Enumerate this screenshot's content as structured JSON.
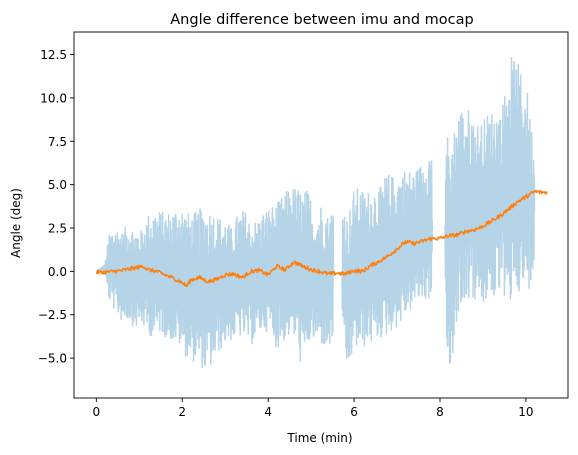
{
  "chart_data": {
    "type": "line",
    "title": "Angle difference between imu and mocap",
    "xlabel": "Time (min)",
    "ylabel": "Angle (deg)",
    "xlim": [
      -0.52,
      10.98
    ],
    "ylim": [
      -7.3,
      13.8
    ],
    "xticks": [
      {
        "value": 0,
        "label": "0"
      },
      {
        "value": 2,
        "label": "2"
      },
      {
        "value": 4,
        "label": "4"
      },
      {
        "value": 6,
        "label": "6"
      },
      {
        "value": 8,
        "label": "8"
      },
      {
        "value": 10,
        "label": "10"
      }
    ],
    "yticks": [
      {
        "value": -5.0,
        "label": "−5.0"
      },
      {
        "value": -2.5,
        "label": "−2.5"
      },
      {
        "value": 0.0,
        "label": "0.0"
      },
      {
        "value": 2.5,
        "label": "2.5"
      },
      {
        "value": 5.0,
        "label": "5.0"
      },
      {
        "value": 7.5,
        "label": "7.5"
      },
      {
        "value": 10.0,
        "label": "10.0"
      },
      {
        "value": 12.5,
        "label": "12.5"
      }
    ],
    "grid": false,
    "legend": "none",
    "series": [
      {
        "color": "#b6d4e7",
        "segments": [
          {
            "x": [
              0.0,
              0.2,
              0.3,
              0.45,
              0.6,
              0.75,
              0.9,
              1.05,
              1.2,
              1.35,
              1.5,
              1.65,
              1.8,
              1.95,
              2.1,
              2.25,
              2.4,
              2.55,
              2.7,
              2.85,
              3.0,
              3.15,
              3.3,
              3.45,
              3.6,
              3.75,
              3.9,
              4.05,
              4.2,
              4.35,
              4.5,
              4.65,
              4.8,
              4.95,
              5.1,
              5.25,
              5.4,
              5.52
            ],
            "low": [
              0.0,
              -0.2,
              -1.7,
              -2.4,
              -2.9,
              -2.8,
              -3.3,
              -3.1,
              -3.6,
              -3.9,
              -3.5,
              -3.9,
              -4.1,
              -4.4,
              -5.0,
              -5.2,
              -5.4,
              -5.9,
              -5.5,
              -4.7,
              -4.2,
              -4.0,
              -3.8,
              -3.9,
              -4.3,
              -3.7,
              -3.4,
              -3.6,
              -4.5,
              -4.1,
              -3.8,
              -4.1,
              -5.9,
              -4.2,
              -4.1,
              -4.3,
              -4.6,
              -4.4
            ],
            "high": [
              0.0,
              0.4,
              2.3,
              2.6,
              2.3,
              2.8,
              2.5,
              2.4,
              3.3,
              3.6,
              3.5,
              3.4,
              3.6,
              4.0,
              3.4,
              3.3,
              3.6,
              3.7,
              3.6,
              3.2,
              3.1,
              2.5,
              3.4,
              3.6,
              2.9,
              3.0,
              3.5,
              3.8,
              3.9,
              4.4,
              4.9,
              4.9,
              4.7,
              4.7,
              3.1,
              4.1,
              3.2,
              3.9
            ]
          },
          {
            "x": [
              5.72,
              5.85,
              6.0,
              6.15,
              6.3,
              6.45,
              6.6,
              6.75,
              6.9,
              7.05,
              7.2,
              7.35,
              7.5,
              7.65,
              7.82
            ],
            "low": [
              -5.2,
              -5.9,
              -4.5,
              -4.6,
              -4.3,
              -4.2,
              -3.9,
              -3.8,
              -3.4,
              -3.2,
              -2.6,
              -2.2,
              -1.8,
              -1.8,
              -1.5
            ],
            "high": [
              4.6,
              3.1,
              4.8,
              4.8,
              4.6,
              5.0,
              4.8,
              5.7,
              5.5,
              5.7,
              6.0,
              5.8,
              6.0,
              6.8,
              7.3
            ]
          },
          {
            "x": [
              8.12,
              8.25,
              8.4,
              8.55,
              8.7,
              8.85,
              9.0,
              9.15,
              9.3,
              9.45,
              9.6,
              9.75,
              9.9,
              10.05,
              10.2
            ],
            "low": [
              -3.1,
              -6.4,
              -2.6,
              -1.6,
              -1.7,
              -1.8,
              -2.2,
              -1.4,
              -1.8,
              -0.9,
              -3.1,
              -0.3,
              -1.8,
              -1.2,
              0.1
            ],
            "high": [
              8.4,
              7.3,
              9.4,
              9.5,
              9.4,
              8.6,
              8.7,
              9.3,
              9.3,
              9.5,
              12.4,
              12.4,
              11.4,
              10.3,
              6.8
            ]
          }
        ]
      },
      {
        "color": "#ff7f0e",
        "x": [
          0.0,
          0.2,
          0.4,
          0.6,
          0.8,
          1.0,
          1.1,
          1.2,
          1.4,
          1.6,
          1.8,
          2.0,
          2.1,
          2.2,
          2.4,
          2.6,
          2.8,
          3.0,
          3.2,
          3.4,
          3.6,
          3.8,
          4.0,
          4.2,
          4.4,
          4.6,
          4.8,
          5.0,
          5.2,
          5.4,
          5.6,
          5.8,
          6.0,
          6.2,
          6.4,
          6.6,
          6.8,
          7.0,
          7.2,
          7.4,
          7.6,
          7.8,
          8.0,
          8.2,
          8.4,
          8.6,
          8.8,
          9.0,
          9.2,
          9.4,
          9.6,
          9.8,
          10.0,
          10.2,
          10.4,
          10.5
        ],
        "y": [
          -0.05,
          -0.05,
          0.0,
          0.05,
          0.15,
          0.25,
          0.3,
          0.1,
          0.0,
          -0.2,
          -0.4,
          -0.65,
          -0.85,
          -0.5,
          -0.35,
          -0.6,
          -0.45,
          -0.2,
          -0.15,
          -0.35,
          0.0,
          0.05,
          -0.2,
          0.3,
          0.1,
          0.55,
          0.3,
          0.1,
          0.0,
          -0.15,
          -0.1,
          -0.15,
          0.05,
          0.0,
          0.35,
          0.6,
          0.9,
          1.3,
          1.7,
          1.6,
          1.75,
          1.9,
          1.9,
          2.05,
          2.1,
          2.3,
          2.4,
          2.6,
          2.9,
          3.2,
          3.6,
          4.0,
          4.3,
          4.6,
          4.55,
          4.55
        ]
      }
    ]
  }
}
